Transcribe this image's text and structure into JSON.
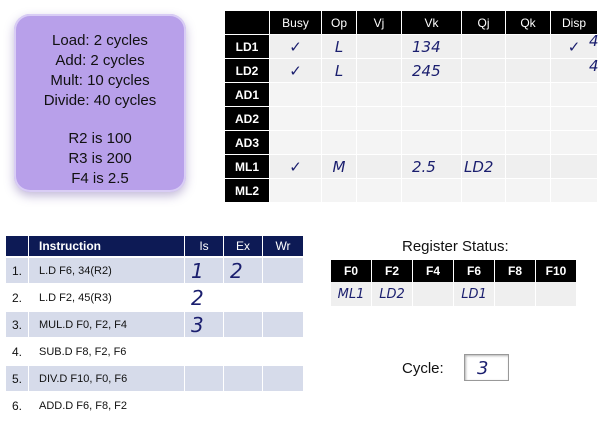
{
  "latencies": {
    "lines": [
      "Load: 2 cycles",
      "Add: 2 cycles",
      "Mult: 10 cycles",
      "Divide: 40 cycles"
    ],
    "registers": [
      "R2 is 100",
      "R3 is 200",
      "F4 is 2.5"
    ]
  },
  "reservation_stations": {
    "headers": [
      "Busy",
      "Op",
      "Vj",
      "Vk",
      "Qj",
      "Qk",
      "Disp"
    ],
    "rows": [
      {
        "name": "LD1",
        "busy": "✓",
        "op": "L",
        "vj": "",
        "vk": "134",
        "qj": "",
        "qk": "",
        "disp": "✓"
      },
      {
        "name": "LD2",
        "busy": "✓",
        "op": "L",
        "vj": "",
        "vk": "245",
        "qj": "",
        "qk": "",
        "disp": ""
      },
      {
        "name": "AD1",
        "busy": "",
        "op": "",
        "vj": "",
        "vk": "",
        "qj": "",
        "qk": "",
        "disp": ""
      },
      {
        "name": "AD2",
        "busy": "",
        "op": "",
        "vj": "",
        "vk": "",
        "qj": "",
        "qk": "",
        "disp": ""
      },
      {
        "name": "AD3",
        "busy": "",
        "op": "",
        "vj": "",
        "vk": "",
        "qj": "",
        "qk": "",
        "disp": ""
      },
      {
        "name": "ML1",
        "busy": "✓",
        "op": "M",
        "vj": "",
        "vk": "2.5",
        "qj": "LD2",
        "qk": "",
        "disp": ""
      },
      {
        "name": "ML2",
        "busy": "",
        "op": "",
        "vj": "",
        "vk": "",
        "qj": "",
        "qk": "",
        "disp": ""
      }
    ],
    "margin_notes": [
      "4",
      "4"
    ]
  },
  "instructions": {
    "headers": {
      "instruction": "Instruction",
      "is": "Is",
      "ex": "Ex",
      "wr": "Wr"
    },
    "rows": [
      {
        "num": "1.",
        "text": "L.D   F6, 34(R2)",
        "is": "1",
        "ex": "2",
        "wr": ""
      },
      {
        "num": "2.",
        "text": "L.D   F2, 45(R3)",
        "is": "2",
        "ex": "",
        "wr": ""
      },
      {
        "num": "3.",
        "text": "MUL.D F0, F2, F4",
        "is": "3",
        "ex": "",
        "wr": ""
      },
      {
        "num": "4.",
        "text": "SUB.D F8, F2, F6",
        "is": "",
        "ex": "",
        "wr": ""
      },
      {
        "num": "5.",
        "text": "DIV.D F10, F0, F6",
        "is": "",
        "ex": "",
        "wr": ""
      },
      {
        "num": "6.",
        "text": "ADD.D F6, F8, F2",
        "is": "",
        "ex": "",
        "wr": ""
      }
    ]
  },
  "register_status": {
    "title": "Register Status:",
    "headers": [
      "F0",
      "F2",
      "F4",
      "F6",
      "F8",
      "F10"
    ],
    "values": [
      "ML1",
      "LD2",
      "",
      "LD1",
      "",
      ""
    ]
  },
  "cycle": {
    "label": "Cycle:",
    "value": "3"
  }
}
